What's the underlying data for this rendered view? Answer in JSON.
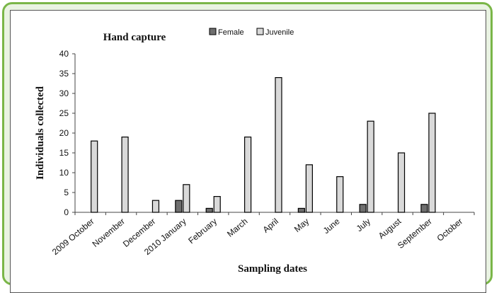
{
  "chart_data": {
    "type": "bar",
    "title": "Hand capture",
    "xlabel": "Sampling dates",
    "ylabel": "Individuals collected",
    "ylim": [
      0,
      40
    ],
    "yticks": [
      "0",
      "5",
      "10",
      "15",
      "20",
      "25",
      "30",
      "35",
      "40"
    ],
    "categories": [
      "2009 October",
      "November",
      "December",
      "2010 January",
      "February",
      "March",
      "April",
      "May",
      "June",
      "July",
      "August",
      "September",
      "October"
    ],
    "series": [
      {
        "name": "Female",
        "color": "#6e6e6e",
        "values": [
          0,
          0,
          0,
          3,
          1,
          0,
          0,
          1,
          0,
          2,
          0,
          2,
          0
        ]
      },
      {
        "name": "Juvenile",
        "color": "#d9d9d9",
        "values": [
          18,
          19,
          3,
          7,
          4,
          19,
          34,
          12,
          9,
          23,
          15,
          25,
          0
        ]
      }
    ],
    "legend": "top"
  }
}
